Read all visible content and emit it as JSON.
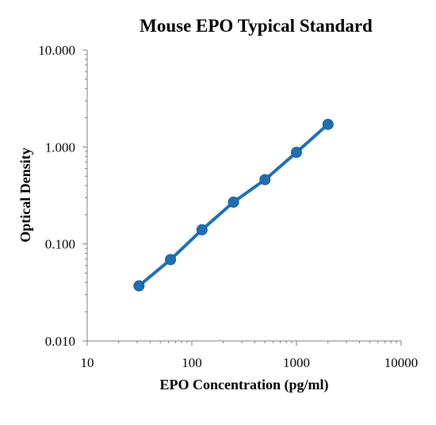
{
  "chart_data": {
    "type": "line",
    "title": "Mouse EPO Typical Standard",
    "xlabel": "EPO Concentration (pg/ml)",
    "ylabel": "Optical Density",
    "xscale": "log",
    "yscale": "log",
    "xlim": [
      10,
      10000
    ],
    "ylim": [
      0.01,
      10
    ],
    "xticks": [
      "10",
      "100",
      "1000",
      "10000"
    ],
    "yticks": [
      "10.000",
      "1.000",
      "0.100",
      "0.010"
    ],
    "grid": false,
    "legend": "none",
    "series": [
      {
        "color": "#1f6fb5",
        "x": [
          31.25,
          62.5,
          125,
          250,
          500,
          1000,
          2000
        ],
        "y": [
          0.037,
          0.069,
          0.14,
          0.27,
          0.46,
          0.88,
          1.71
        ]
      }
    ]
  }
}
